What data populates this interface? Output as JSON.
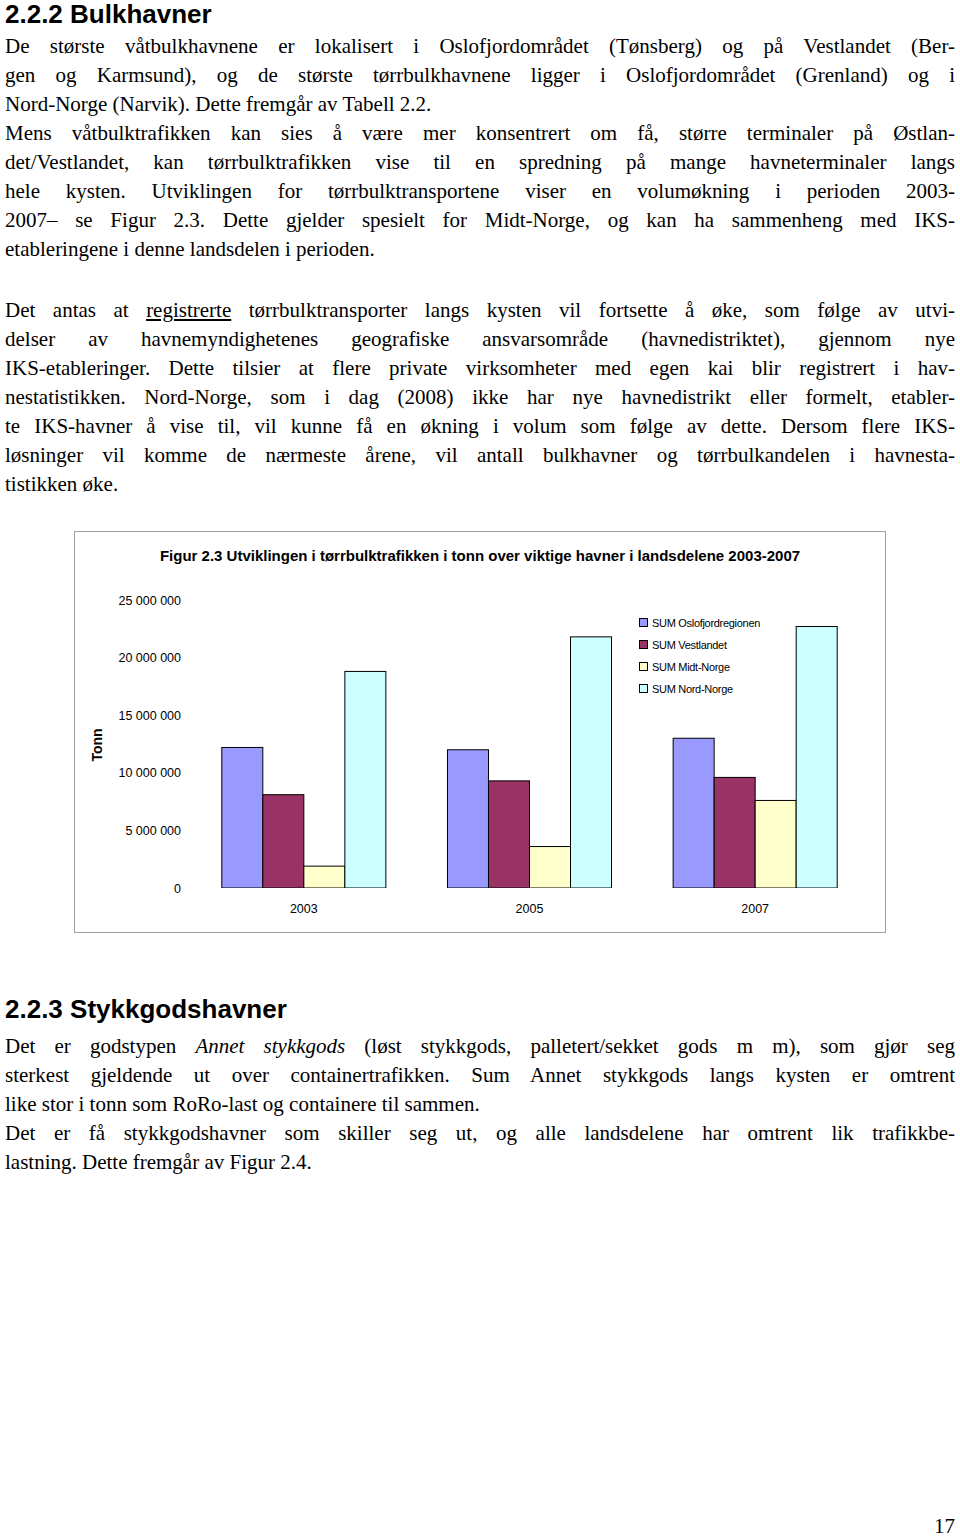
{
  "headings": [
    "2.2.2 Bulkhavner",
    "2.2.3 Stykkgodshavner"
  ],
  "paragraphs": [
    {
      "lines": [
        "De største våtbulkhavnene er lokalisert i Oslofjordområdet (Tønsberg) og på Vestlandet (Ber-",
        "gen og Karmsund), og de største tørrbulkhavnene ligger i Oslofjordområdet (Grenland) og i",
        "Nord-Norge (Narvik). Dette fremgår av Tabell 2.2."
      ]
    },
    {
      "lines": [
        "Mens våtbulktrafikken kan sies å være mer konsentrert om få, større terminaler på Østlan-",
        "det/Vestlandet, kan tørrbulktrafikken vise til en spredning på mange havneterminaler langs",
        "hele kysten. Utviklingen for tørrbulktransportene viser en volumøkning i perioden 2003-",
        "2007– se Figur 2.3. Dette gjelder spesielt for Midt-Norge, og kan ha sammenheng med IKS-",
        "etableringene i denne landsdelen i perioden."
      ]
    },
    {
      "lines": [
        [
          "Det antas at ",
          {
            "text": "registrerte",
            "underline": true
          },
          " tørrbulktransporter langs kysten vil fortsette å øke, som følge av utvi-"
        ],
        "delser av havnemyndighetenes geografiske ansvarsområde (havnedistriktet), gjennom nye",
        "IKS-etableringer. Dette tilsier at flere private virksomheter med egen kai blir registrert i hav-",
        "nestatistikken. Nord-Norge, som i dag (2008) ikke har nye havnedistrikt eller formelt, etabler-",
        "te IKS-havner å vise til, vil kunne få en økning i volum som følge av dette. Dersom flere IKS-",
        "løsninger vil komme de nærmeste årene, vil antall bulkhavner og tørrbulkandelen i havnesta-",
        "tistikken øke."
      ]
    },
    {
      "lines": [
        [
          "Det er godstypen ",
          {
            "text": "Annet stykkgods",
            "italic": true
          },
          " (løst stykkgods, palletert/sekket gods m m), som gjør seg"
        ],
        "sterkest gjeldende ut over containertrafikken. Sum Annet stykkgods langs kysten er omtrent",
        "like stor i tonn som RoRo-last og containere til sammen."
      ]
    },
    {
      "lines": [
        "Det er få stykkgodshavner som skiller seg ut, og alle landsdelene har omtrent lik trafikkbe-",
        "lastning. Dette fremgår av Figur 2.4."
      ]
    }
  ],
  "chart_data": {
    "type": "bar",
    "title": "Figur 2.3 Utviklingen i tørrbulktrafikken i tonn over viktige havner i landsdelene 2003-2007",
    "ylabel": "Tonn",
    "categories": [
      "2003",
      "2005",
      "2007"
    ],
    "series": [
      {
        "name": "SUM Oslofjordregionen",
        "color": "#9999ff",
        "values": [
          12200000,
          12000000,
          13000000
        ]
      },
      {
        "name": "SUM Vestlandet",
        "color": "#993366",
        "values": [
          8100000,
          9300000,
          9600000
        ]
      },
      {
        "name": "SUM Midt-Norge",
        "color": "#ffffcc",
        "values": [
          1900000,
          3600000,
          7600000
        ]
      },
      {
        "name": "SUM Nord-Norge",
        "color": "#ccffff",
        "values": [
          18800000,
          21800000,
          22700000
        ]
      }
    ],
    "ylim": [
      0,
      25000000
    ],
    "yticks": [
      0,
      {
        "value": 5000000,
        "label": "5 000 000"
      },
      {
        "value": 10000000,
        "label": "10 000 000"
      },
      {
        "value": 15000000,
        "label": "15 000 000"
      },
      {
        "value": 20000000,
        "label": "20 000 000"
      },
      {
        "value": 25000000,
        "label": "25 000 000"
      }
    ],
    "grid": false,
    "legend": "top-right"
  },
  "page_number": "17"
}
